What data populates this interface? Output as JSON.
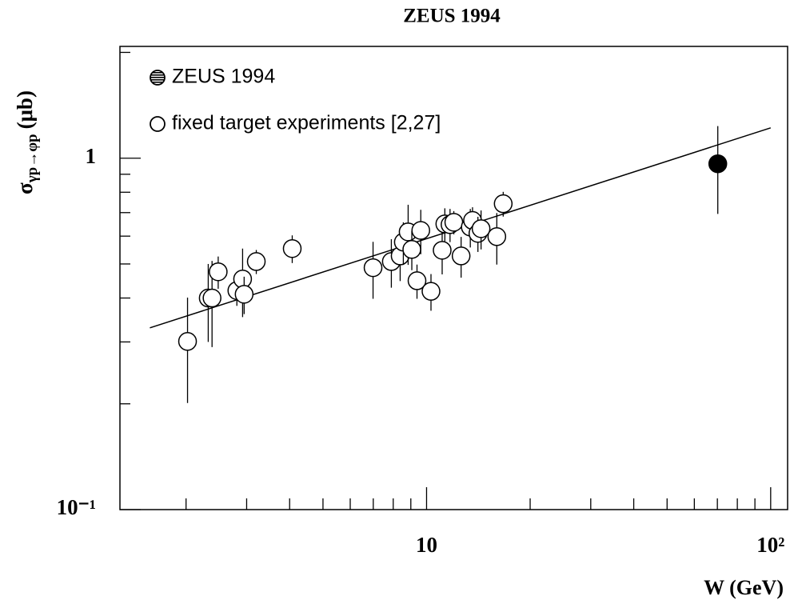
{
  "chart_data": {
    "type": "scatter",
    "title": "ZEUS 1994",
    "xlabel": "W (GeV)",
    "ylabel": {
      "symbol": "σ",
      "subscript": "γp→φp",
      "unit": "(μb)"
    },
    "xscale": "log",
    "yscale": "log",
    "xlim": [
      1.285,
      112
    ],
    "ylim": [
      0.1,
      2.08
    ],
    "xticks": [
      10,
      {
        "value": 100,
        "label": "10²"
      }
    ],
    "yticks": [
      {
        "value": 0.1,
        "label": "10⁻¹"
      },
      1
    ],
    "xminorticks": [
      2,
      3,
      4,
      5,
      6,
      7,
      8,
      9,
      20,
      30,
      40,
      50,
      60,
      70,
      80,
      90
    ],
    "yminorticks": [
      0.2,
      0.3,
      0.4,
      0.5,
      0.6,
      0.7,
      0.8,
      0.9,
      2
    ],
    "legend": "upper left",
    "series": [
      {
        "name": "ZEUS 1994",
        "color": "#000000",
        "marker": "filled",
        "x": [
          70.2
        ],
        "values": [
          0.964
        ],
        "errors": [
          0.27
        ]
      },
      {
        "name": "fixed target experiments [2,27]",
        "color": "#000000",
        "marker": "open",
        "x": [
          2.02,
          2.32,
          2.38,
          2.48,
          2.81,
          2.92,
          2.95,
          3.2,
          4.07,
          6.99,
          7.9,
          8.38,
          8.56,
          8.84,
          9.06,
          9.38,
          9.62,
          10.3,
          11.1,
          11.3,
          11.7,
          12.0,
          12.6,
          13.4,
          13.6,
          14.1,
          14.4,
          16.0,
          16.7
        ],
        "values": [
          0.301,
          0.4,
          0.4,
          0.475,
          0.42,
          0.453,
          0.41,
          0.508,
          0.553,
          0.488,
          0.508,
          0.527,
          0.577,
          0.617,
          0.55,
          0.448,
          0.623,
          0.418,
          0.547,
          0.65,
          0.647,
          0.657,
          0.527,
          0.637,
          0.665,
          0.611,
          0.63,
          0.598,
          0.742
        ],
        "errors": [
          0.1,
          0.1,
          0.11,
          0.05,
          0.04,
          0.1,
          0.05,
          0.04,
          0.05,
          0.09,
          0.08,
          0.08,
          0.08,
          0.12,
          0.07,
          0.05,
          0.09,
          0.05,
          0.08,
          0.07,
          0.07,
          0.05,
          0.07,
          0.08,
          0.06,
          0.07,
          0.08,
          0.1,
          0.06
        ]
      }
    ],
    "fit_line": {
      "x": [
        1.57,
        100
      ],
      "values": [
        0.329,
        1.22
      ]
    }
  }
}
